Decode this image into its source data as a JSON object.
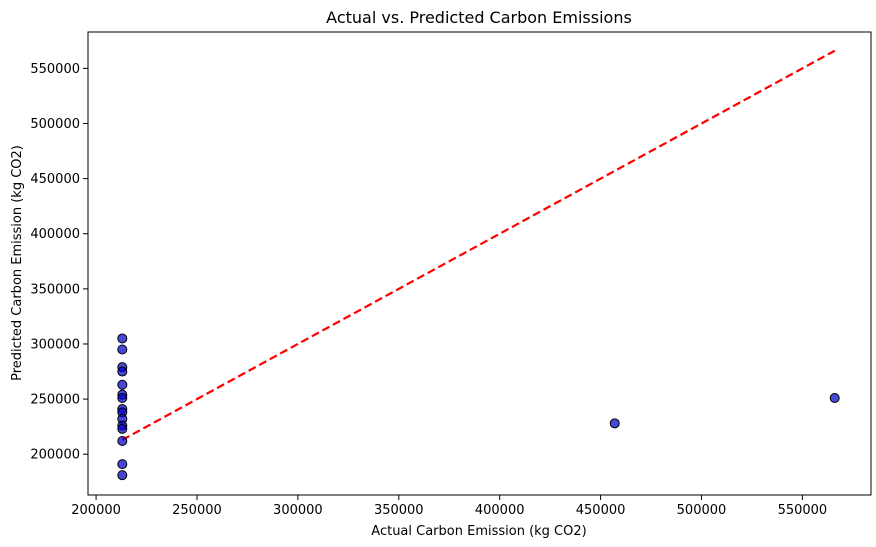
{
  "chart_data": {
    "type": "scatter",
    "title": "Actual vs. Predicted Carbon Emissions",
    "xlabel": "Actual Carbon Emission (kg CO2)",
    "ylabel": "Predicted Carbon Emission (kg CO2)",
    "xlim": [
      196000,
      584000
    ],
    "ylim": [
      163000,
      583000
    ],
    "xticks": [
      200000,
      250000,
      300000,
      350000,
      400000,
      450000,
      500000,
      550000
    ],
    "yticks": [
      200000,
      250000,
      300000,
      350000,
      400000,
      450000,
      500000,
      550000
    ],
    "grid": false,
    "points": [
      {
        "x": 213000,
        "y": 305000
      },
      {
        "x": 213000,
        "y": 295000
      },
      {
        "x": 213000,
        "y": 279000
      },
      {
        "x": 213000,
        "y": 275000
      },
      {
        "x": 213000,
        "y": 263000
      },
      {
        "x": 213000,
        "y": 254000
      },
      {
        "x": 213000,
        "y": 251000
      },
      {
        "x": 213000,
        "y": 241000
      },
      {
        "x": 213000,
        "y": 238000
      },
      {
        "x": 213000,
        "y": 232000
      },
      {
        "x": 213000,
        "y": 226000
      },
      {
        "x": 213000,
        "y": 223000
      },
      {
        "x": 213000,
        "y": 212000
      },
      {
        "x": 213000,
        "y": 191000
      },
      {
        "x": 213000,
        "y": 181000
      },
      {
        "x": 457000,
        "y": 228000
      },
      {
        "x": 566000,
        "y": 251000
      }
    ],
    "reference_line": {
      "x": [
        213000,
        566000
      ],
      "y": [
        213000,
        566000
      ],
      "style": "dashed"
    },
    "colors": {
      "points": "#0000cc",
      "point_edge": "#000000",
      "reference_line": "#ff0000"
    }
  }
}
